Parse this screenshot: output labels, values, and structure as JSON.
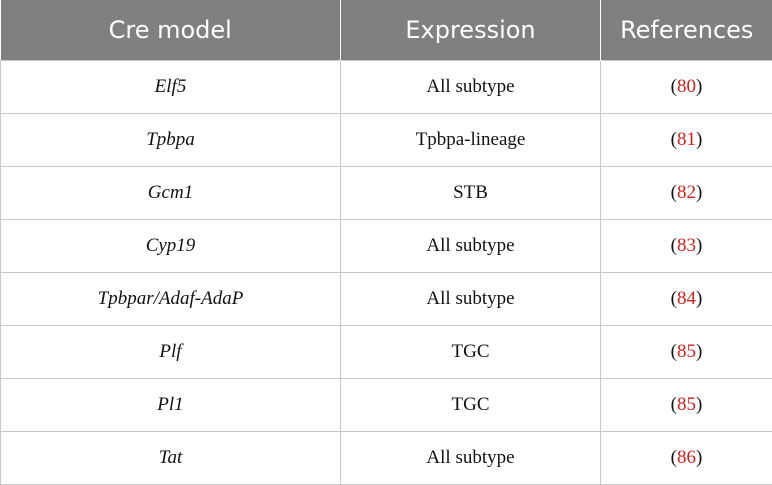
{
  "table": {
    "header": [
      "Cre model",
      "Expression",
      "References"
    ],
    "rows": [
      [
        "Elf5",
        "All subtype",
        "(80)"
      ],
      [
        "Tpbpa",
        "Tpbpa-lineage",
        "(81)"
      ],
      [
        "Gcm1",
        "STB",
        "(82)"
      ],
      [
        "Cyp19",
        "All subtype",
        "(83)"
      ],
      [
        "Tpbpar/Adaf-AdaP",
        "All subtype",
        "(84)"
      ],
      [
        "Plf",
        "TGC",
        "(85)"
      ],
      [
        "Pl1",
        "TGC",
        "(85)"
      ],
      [
        "Tat",
        "All subtype",
        "(86)"
      ]
    ]
  }
}
